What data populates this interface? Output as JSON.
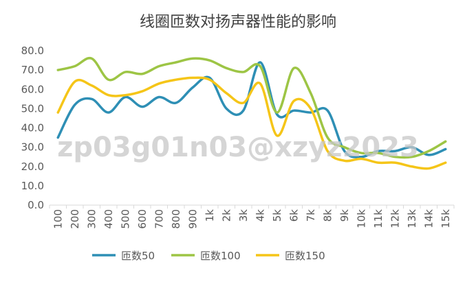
{
  "chart_data": {
    "type": "line",
    "title": "线圈匝数对扬声器性能的影响",
    "categories": [
      "100",
      "200",
      "300",
      "400",
      "500",
      "600",
      "700",
      "800",
      "900",
      "1k",
      "2k",
      "3k",
      "4k",
      "5k",
      "6k",
      "7k",
      "8k",
      "9k",
      "10k",
      "11k",
      "12k",
      "13k",
      "14k",
      "15k"
    ],
    "ylim": [
      0,
      80
    ],
    "yticks": [
      "0.0",
      "10.0",
      "20.0",
      "30.0",
      "40.0",
      "50.0",
      "60.0",
      "70.0",
      "80.0"
    ],
    "legend_position": "bottom",
    "grid": false,
    "series": [
      {
        "name": "匝数50",
        "color": "#2E8FB5",
        "values": [
          35,
          52,
          55,
          48,
          56,
          51,
          56,
          53,
          61,
          66,
          50,
          49,
          74,
          47,
          49,
          48,
          49,
          28,
          25,
          28,
          28,
          30,
          26,
          29
        ]
      },
      {
        "name": "匝数100",
        "color": "#9DC545",
        "values": [
          70,
          72,
          76,
          65,
          69,
          68,
          72,
          74,
          76,
          75,
          71,
          69,
          72,
          48,
          71,
          58,
          35,
          30,
          27,
          27,
          25,
          25,
          28,
          33
        ]
      },
      {
        "name": "匝数150",
        "color": "#F5C518",
        "values": [
          48,
          64,
          62,
          57,
          57,
          59,
          63,
          65,
          66,
          65,
          58,
          53,
          63,
          36,
          54,
          50,
          28,
          23,
          24,
          22,
          22,
          20,
          19,
          22
        ]
      }
    ]
  },
  "watermark": "zp03g01n03@xzyz2023"
}
